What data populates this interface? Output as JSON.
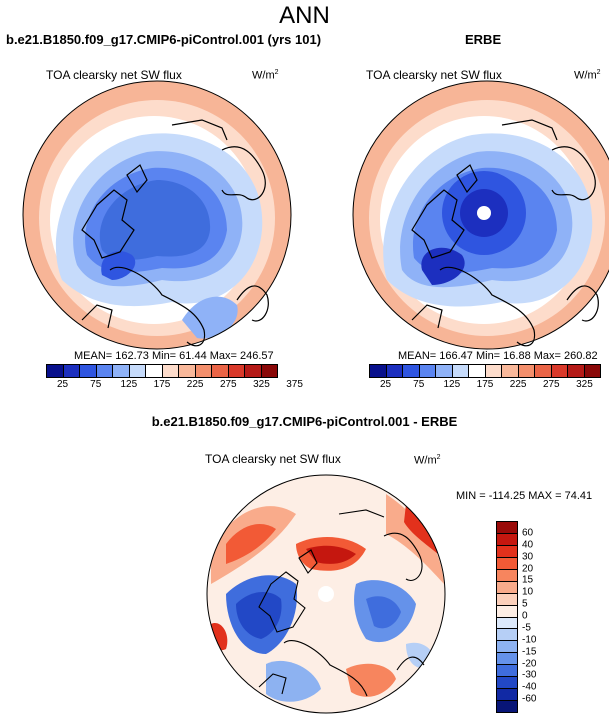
{
  "page_title": "ANN",
  "panels": {
    "model": {
      "title": "b.e21.B1850.f09_g17.CMIP6-piControl.001 (yrs 101)",
      "variable": "TOA clearsky net SW flux",
      "units": "W/m",
      "units_sup": "2",
      "stats": "MEAN= 162.73  Min=  61.44  Max= 246.57"
    },
    "obs": {
      "title": "ERBE",
      "variable": "TOA clearsky net SW flux",
      "units": "W/m",
      "units_sup": "2",
      "stats": "MEAN= 166.47  Min=  16.88  Max= 260.82"
    },
    "diff": {
      "title": "b.e21.B1850.f09_g17.CMIP6-piControl.001 - ERBE",
      "variable": "TOA clearsky net SW flux",
      "units": "W/m",
      "units_sup": "2",
      "stats": "MIN = -114.25 MAX =  74.41"
    }
  },
  "colorbar_abs": {
    "colors": [
      "#08108c",
      "#1c2fbf",
      "#2f55e0",
      "#5a84f0",
      "#8fb2f7",
      "#c6dbfb",
      "#ffffff",
      "#fddccb",
      "#f9b89a",
      "#f48f6c",
      "#ea6446",
      "#d9392a",
      "#b51a17",
      "#8a0808"
    ],
    "labels": [
      "25",
      "75",
      "125",
      "175",
      "225",
      "275",
      "325",
      "375"
    ]
  },
  "colorbar_diff": {
    "colors": [
      "#9a0b09",
      "#c5170f",
      "#e2311c",
      "#f25a36",
      "#f7855e",
      "#f9ab8b",
      "#fcd0bb",
      "#fdeee5",
      "#dce9fb",
      "#b6cff6",
      "#8db2f1",
      "#6592ea",
      "#3f6ddd",
      "#2248c6",
      "#1129a4",
      "#081577"
    ],
    "labels": [
      "60",
      "40",
      "30",
      "20",
      "15",
      "10",
      "5",
      "0",
      "-5",
      "-10",
      "-15",
      "-20",
      "-30",
      "-40",
      "-60"
    ]
  }
}
